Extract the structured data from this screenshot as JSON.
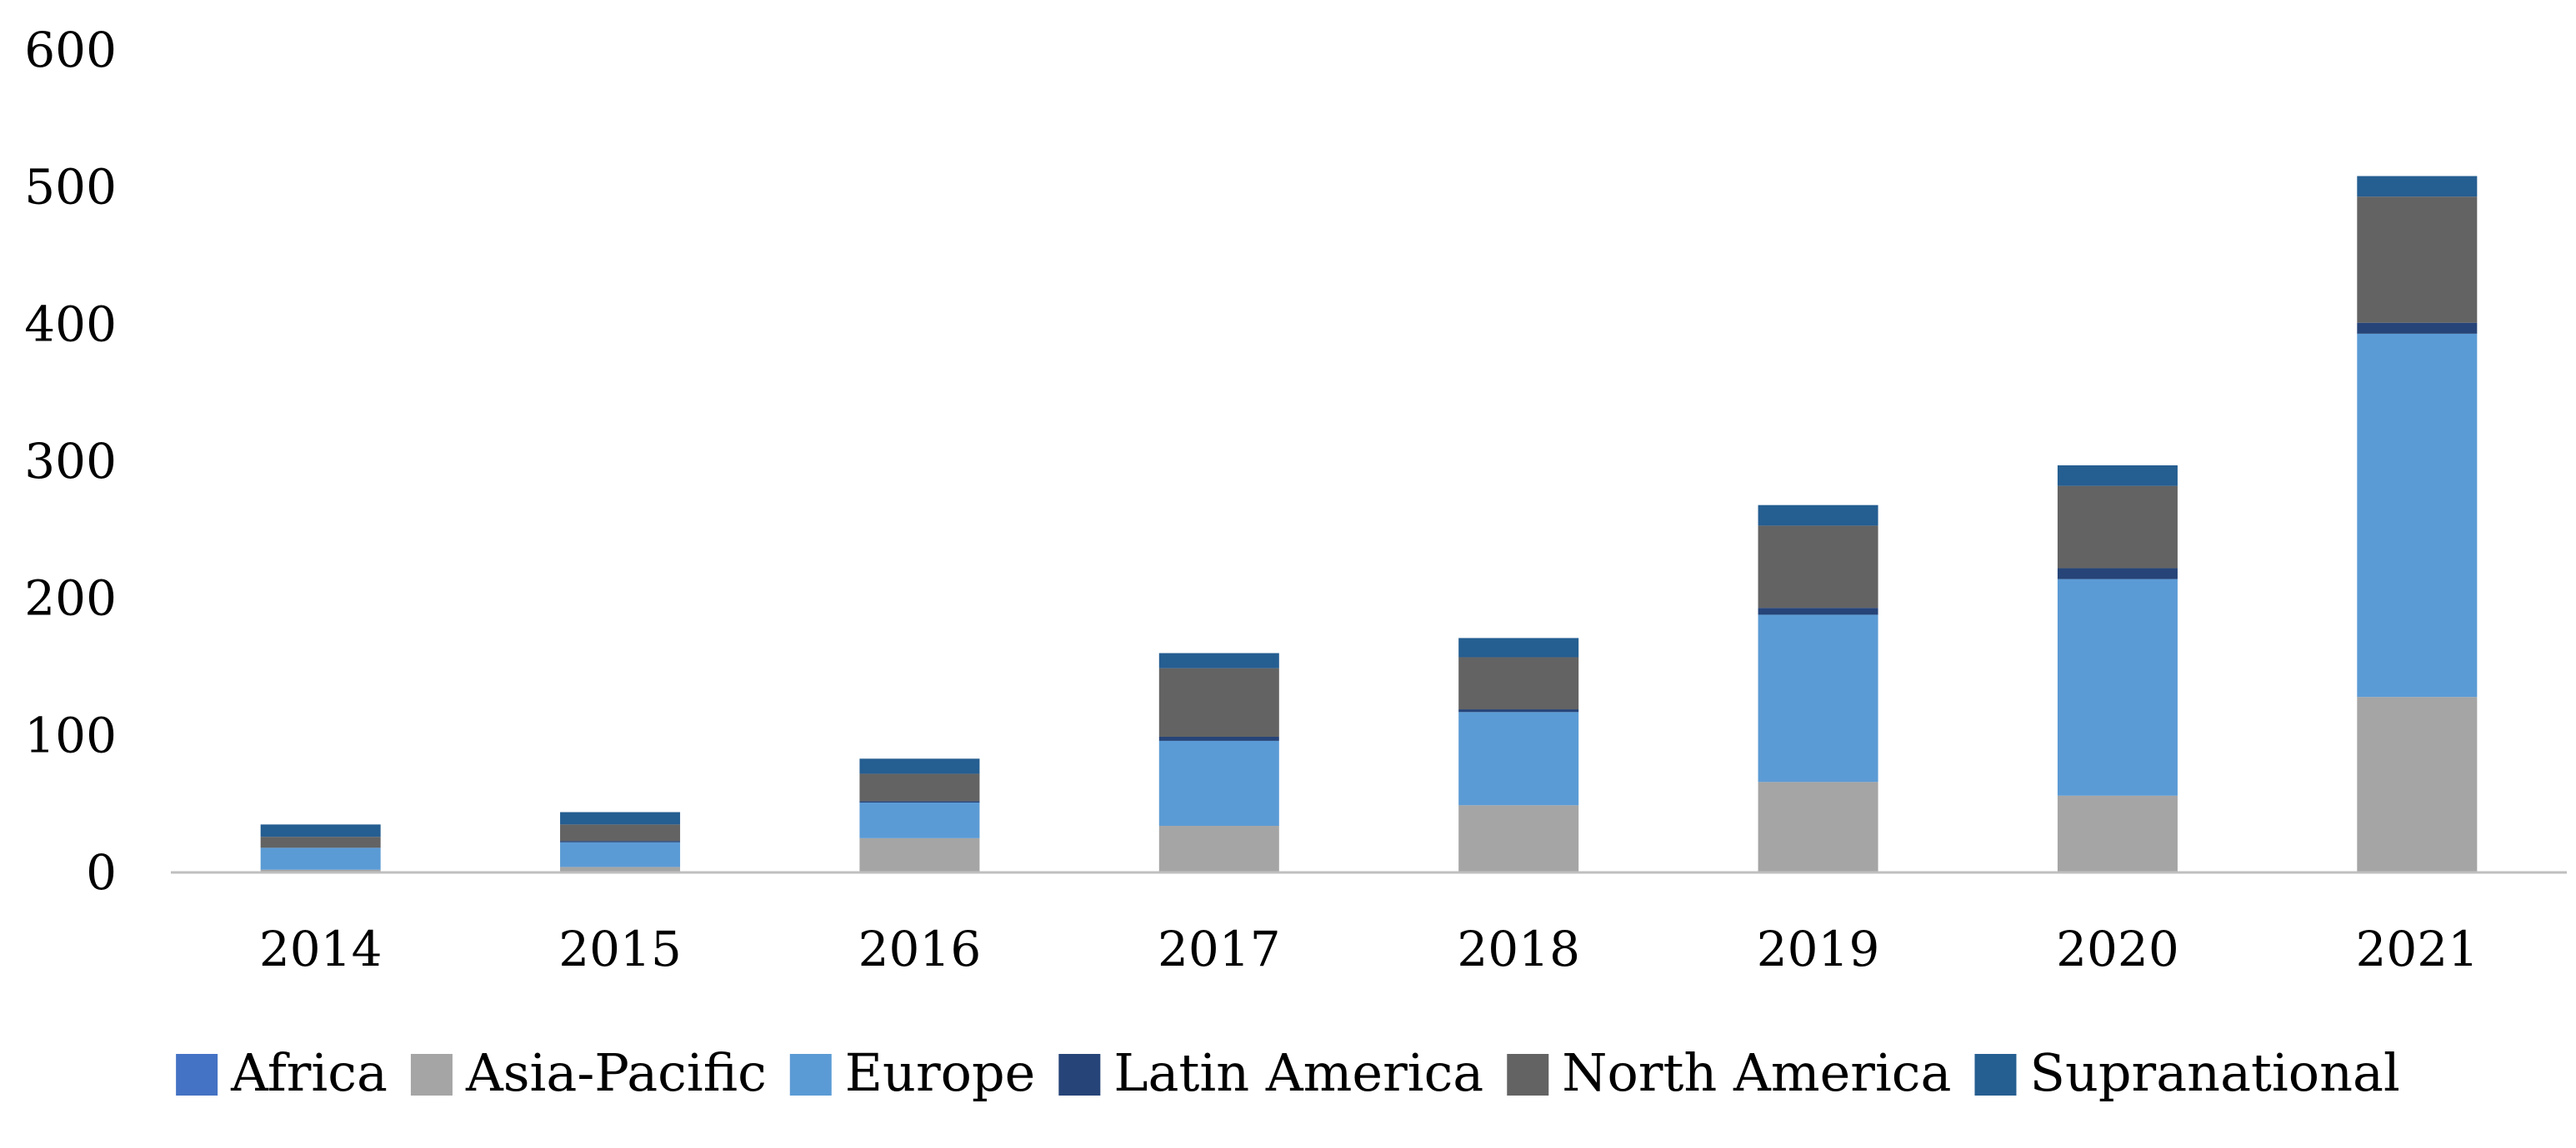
{
  "chart_data": {
    "type": "bar",
    "stacked": true,
    "title": "",
    "xlabel": "",
    "ylabel": "",
    "categories": [
      "2014",
      "2015",
      "2016",
      "2017",
      "2018",
      "2019",
      "2020",
      "2021"
    ],
    "ylim": [
      0,
      600
    ],
    "yticks": [
      0,
      100,
      200,
      300,
      400,
      500,
      600
    ],
    "grid": false,
    "legend": "bottom",
    "series": [
      {
        "name": "Africa",
        "color": "#4472C4",
        "values": [
          0,
          0,
          0,
          0,
          0,
          0,
          0,
          0
        ]
      },
      {
        "name": "Asia-Pacific",
        "color": "#A5A5A5",
        "values": [
          2,
          4,
          25,
          34,
          49,
          66,
          56,
          128
        ]
      },
      {
        "name": "Europe",
        "color": "#5B9BD5",
        "values": [
          16,
          18,
          26,
          62,
          68,
          122,
          158,
          265
        ]
      },
      {
        "name": "Latin America",
        "color": "#264478",
        "values": [
          0,
          1,
          1,
          3,
          2,
          5,
          8,
          8
        ]
      },
      {
        "name": "North America",
        "color": "#636363",
        "values": [
          8,
          12,
          20,
          50,
          38,
          60,
          60,
          92
        ]
      },
      {
        "name": "Supranational",
        "color": "#255E91",
        "values": [
          9,
          9,
          11,
          11,
          14,
          15,
          15,
          15
        ]
      }
    ]
  }
}
